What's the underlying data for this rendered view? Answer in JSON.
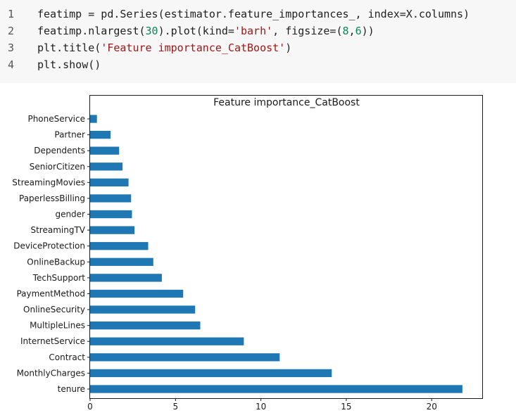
{
  "code_cell": {
    "lines": [
      {
        "no": "1",
        "parts": [
          {
            "t": "featimp = pd.Series(estimator.feature_importances_, index=X.columns)",
            "c": ""
          }
        ]
      },
      {
        "no": "2",
        "parts": [
          {
            "t": "featimp.nlargest(",
            "c": ""
          },
          {
            "t": "30",
            "c": "num"
          },
          {
            "t": ").plot(kind=",
            "c": ""
          },
          {
            "t": "'barh'",
            "c": "str"
          },
          {
            "t": ", figsize=(",
            "c": ""
          },
          {
            "t": "8",
            "c": "num"
          },
          {
            "t": ",",
            "c": ""
          },
          {
            "t": "6",
            "c": "num"
          },
          {
            "t": "))",
            "c": ""
          }
        ]
      },
      {
        "no": "3",
        "parts": [
          {
            "t": "plt.title(",
            "c": ""
          },
          {
            "t": "'Feature importance_CatBoost'",
            "c": "str"
          },
          {
            "t": ")",
            "c": ""
          }
        ]
      },
      {
        "no": "4",
        "parts": [
          {
            "t": "plt.show()",
            "c": ""
          }
        ]
      }
    ]
  },
  "colors": {
    "bar": "#1f77b4",
    "code_bg": "#f7f7f7",
    "string": "#a31515",
    "number": "#098658"
  },
  "chart_data": {
    "type": "bar",
    "orientation": "horizontal",
    "title": "Feature importance_CatBoost",
    "xlabel": "",
    "ylabel": "",
    "xlim": [
      0,
      23
    ],
    "xticks": [
      0,
      5,
      10,
      15,
      20
    ],
    "grid": false,
    "categories": [
      "PhoneService",
      "Partner",
      "Dependents",
      "SeniorCitizen",
      "StreamingMovies",
      "PaperlessBilling",
      "gender",
      "StreamingTV",
      "DeviceProtection",
      "OnlineBackup",
      "TechSupport",
      "PaymentMethod",
      "OnlineSecurity",
      "MultipleLines",
      "InternetService",
      "Contract",
      "MonthlyCharges",
      "tenure"
    ],
    "values": [
      0.4,
      1.2,
      1.7,
      1.9,
      2.25,
      2.4,
      2.45,
      2.6,
      3.4,
      3.7,
      4.2,
      5.45,
      6.15,
      6.45,
      9.0,
      11.1,
      14.15,
      21.8
    ]
  }
}
